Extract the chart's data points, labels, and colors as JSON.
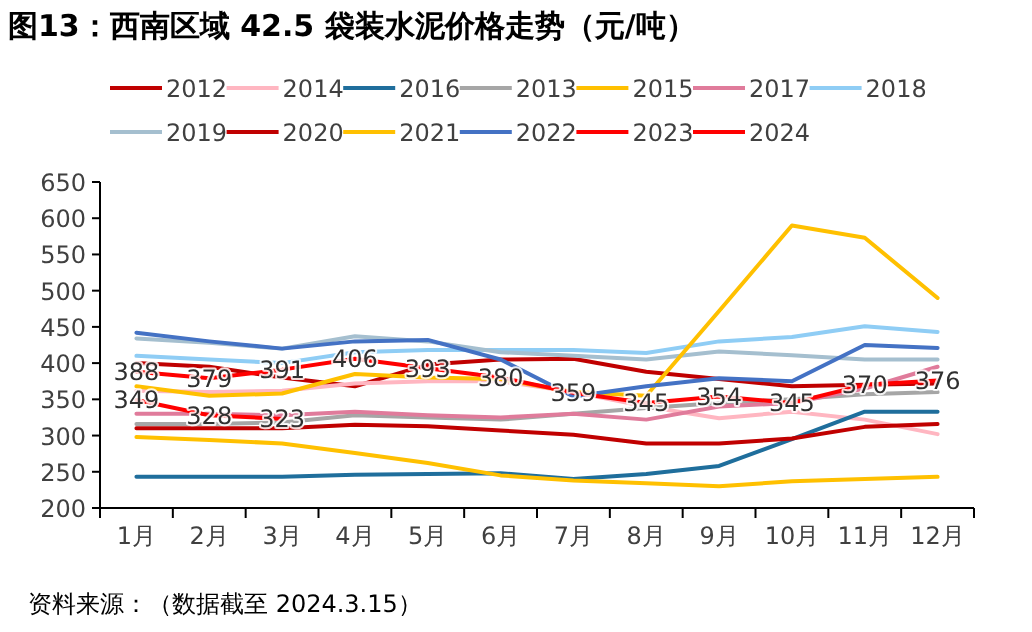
{
  "chart_data": {
    "type": "line",
    "title": "图13：西南区域 42.5 袋装水泥价格走势（元/吨）",
    "annotations": [
      "资料来源：（数据截至 2024.3.15）"
    ],
    "categories": [
      "1月",
      "2月",
      "3月",
      "4月",
      "5月",
      "6月",
      "7月",
      "8月",
      "9月",
      "10月",
      "11月",
      "12月"
    ],
    "ylim": [
      200,
      650
    ],
    "yticks": [
      200,
      250,
      300,
      350,
      400,
      450,
      500,
      550,
      600,
      650
    ],
    "legend": "top",
    "grid": false,
    "line_style": "solid",
    "series": [
      {
        "name": "2012",
        "color": "#c00000",
        "values": [
          400,
          395,
          380,
          368,
          398,
          405,
          406,
          388,
          378,
          368,
          370,
          372
        ]
      },
      {
        "name": "2014",
        "color": "#ffb6c1",
        "values": [
          362,
          360,
          362,
          372,
          375,
          375,
          360,
          340,
          324,
          333,
          322,
          302
        ]
      },
      {
        "name": "2016",
        "color": "#1f6e9c",
        "values": [
          243,
          243,
          243,
          246,
          247,
          248,
          240,
          247,
          258,
          295,
          333,
          333
        ]
      },
      {
        "name": "2013",
        "color": "#a6a6a6",
        "values": [
          316,
          316,
          318,
          328,
          325,
          322,
          330,
          338,
          345,
          350,
          357,
          360
        ]
      },
      {
        "name": "2015",
        "color": "#ffc000",
        "values": [
          298,
          294,
          289,
          276,
          262,
          245,
          238,
          234,
          230,
          237,
          240,
          243
        ]
      },
      {
        "name": "2017",
        "color": "#e07b9b",
        "values": [
          330,
          330,
          328,
          333,
          328,
          325,
          330,
          322,
          340,
          345,
          365,
          395
        ]
      },
      {
        "name": "2018",
        "color": "#8fcdf5",
        "values": [
          410,
          405,
          400,
          415,
          418,
          418,
          418,
          414,
          430,
          436,
          451,
          443
        ]
      },
      {
        "name": "2019",
        "color": "#a5bfcf",
        "values": [
          434,
          428,
          420,
          437,
          430,
          415,
          410,
          405,
          416,
          411,
          405,
          405
        ]
      },
      {
        "name": "2020",
        "color": "#c00000",
        "values": [
          310,
          310,
          310,
          315,
          313,
          307,
          301,
          289,
          289,
          296,
          312,
          316
        ]
      },
      {
        "name": "2021",
        "color": "#ffc000",
        "values": [
          368,
          355,
          358,
          385,
          380,
          378,
          360,
          355,
          472,
          590,
          573,
          490
        ]
      },
      {
        "name": "2022",
        "color": "#4472c4",
        "values": [
          442,
          430,
          420,
          430,
          432,
          405,
          354,
          368,
          379,
          375,
          425,
          421
        ]
      },
      {
        "name": "2023",
        "color": "#ff0000",
        "values": [
          388,
          379,
          391,
          406,
          393,
          380,
          359,
          345,
          354,
          345,
          370,
          376
        ],
        "value_labels": [
          "388",
          "379",
          "391",
          "406",
          "393",
          "380",
          "359",
          "345",
          "354",
          "345",
          "370",
          "376"
        ]
      },
      {
        "name": "2024",
        "color": "#ff0000",
        "values": [
          349,
          328,
          323,
          null,
          null,
          null,
          null,
          null,
          null,
          null,
          null,
          null
        ],
        "value_labels": [
          "349",
          "328",
          "323",
          null,
          null,
          null,
          null,
          null,
          null,
          null,
          null,
          null
        ]
      }
    ]
  }
}
